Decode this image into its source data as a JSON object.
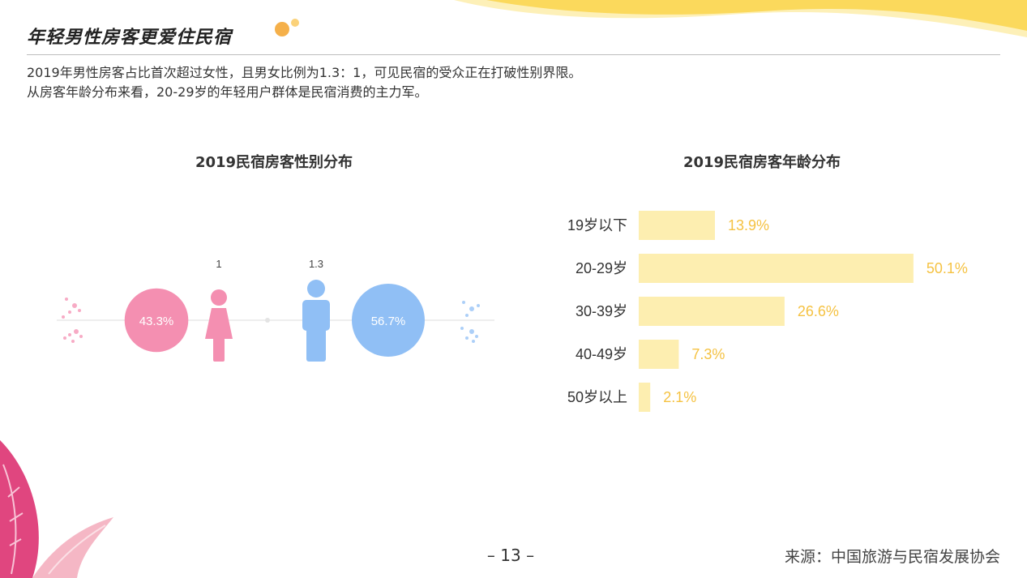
{
  "header": {
    "title": "年轻男性房客更爱住民宿"
  },
  "intro": {
    "line1": "2019年男性房客占比首次超过女性，且男女比例为1.3：1，可见民宿的受众正在打破性别界限。",
    "line2": "从房客年龄分布来看，20-29岁的年轻用户群体是民宿消费的主力军。"
  },
  "footer": {
    "page_number": "– 13 –",
    "source": "来源：中国旅游与民宿发展协会"
  },
  "colors": {
    "female": "#f48fb1",
    "male": "#90bff5",
    "bar": "#fdeeb0",
    "bar_label": "#f5c242",
    "wave": "#fbd95c",
    "leaf": "#e0467f"
  },
  "chart_data": [
    {
      "type": "pie",
      "title": "2019民宿房客性别分布",
      "categories": [
        "female",
        "male"
      ],
      "icons": [
        "female-icon",
        "male-icon"
      ],
      "values": [
        43.3,
        56.7
      ],
      "value_labels": [
        "43.3%",
        "56.7%"
      ],
      "ratio_labels": [
        "1",
        "1.3"
      ]
    },
    {
      "type": "bar",
      "orientation": "horizontal",
      "title": "2019民宿房客年龄分布",
      "categories": [
        "19岁以下",
        "20-29岁",
        "30-39岁",
        "40-49岁",
        "50岁以上"
      ],
      "values": [
        13.9,
        50.1,
        26.6,
        7.3,
        2.1
      ],
      "value_labels": [
        "13.9%",
        "50.1%",
        "26.6%",
        "7.3%",
        "2.1%"
      ],
      "xlim": [
        0,
        55
      ]
    }
  ]
}
